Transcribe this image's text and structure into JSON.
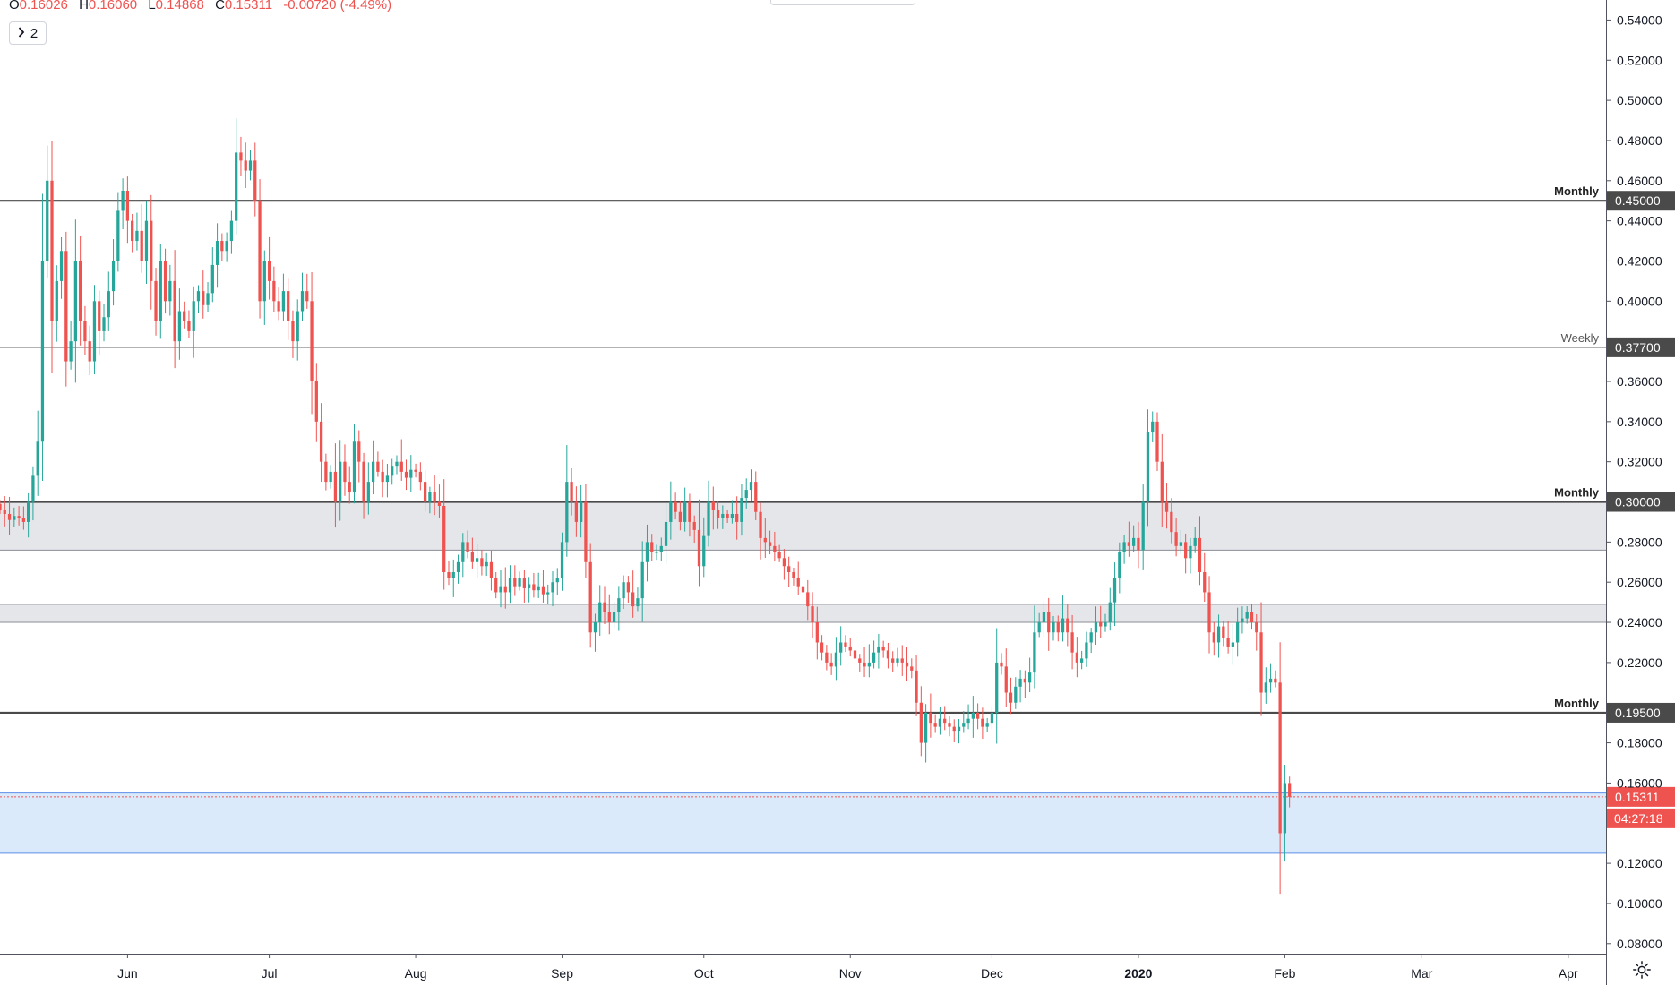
{
  "legend": {
    "open_label": "O",
    "open": "0.16026",
    "high_label": "H",
    "high": "0.16060",
    "low_label": "L",
    "low": "0.14868",
    "close_label": "C",
    "close": "0.15311",
    "change": "-0.00720 (-4.49%)"
  },
  "collapse_button": {
    "label": "2"
  },
  "countdown": "04:27:18",
  "colors": {
    "up": "#26a69a",
    "down": "#ef5350",
    "level_line": "#555555",
    "zone_gray": "#e5e6ea",
    "zone_blue": "#dbeafb",
    "zone_blue_border": "#5b8fe8",
    "axis_text": "#131722"
  },
  "icons": {
    "settings": "gear-icon",
    "chevron": "chevron-right-icon"
  },
  "chart_data": {
    "type": "candlestick",
    "y_range": [
      0.075,
      0.55
    ],
    "x_range": [
      "2019-05-05",
      "2020-04-09"
    ],
    "y_ticks": [
      "0.54000",
      "0.52000",
      "0.50000",
      "0.48000",
      "0.46000",
      "0.44000",
      "0.42000",
      "0.40000",
      "0.36000",
      "0.34000",
      "0.32000",
      "0.28000",
      "0.26000",
      "0.24000",
      "0.22000",
      "0.18000",
      "0.16000",
      "0.12000",
      "0.10000",
      "0.08000"
    ],
    "x_ticks": [
      {
        "label": "Jun",
        "date": "2019-06-01",
        "bold": false
      },
      {
        "label": "Jul",
        "date": "2019-07-01",
        "bold": false
      },
      {
        "label": "Aug",
        "date": "2019-08-01",
        "bold": false
      },
      {
        "label": "Sep",
        "date": "2019-09-01",
        "bold": false
      },
      {
        "label": "Oct",
        "date": "2019-10-01",
        "bold": false
      },
      {
        "label": "Nov",
        "date": "2019-11-01",
        "bold": false
      },
      {
        "label": "Dec",
        "date": "2019-12-01",
        "bold": false
      },
      {
        "label": "2020",
        "date": "2020-01-01",
        "bold": true
      },
      {
        "label": "Feb",
        "date": "2020-02-01",
        "bold": false
      },
      {
        "label": "Mar",
        "date": "2020-03-01",
        "bold": false
      },
      {
        "label": "Apr",
        "date": "2020-04-01",
        "bold": false
      }
    ],
    "levels": [
      {
        "label": "Monthly",
        "price": 0.45,
        "tag": "0.45000",
        "weight": "heavy"
      },
      {
        "label": "Weekly",
        "price": 0.377,
        "tag": "0.37700",
        "weight": "light"
      },
      {
        "label": "Monthly",
        "price": 0.3,
        "tag": "0.30000",
        "weight": "heavy"
      },
      {
        "label": "Monthly",
        "price": 0.195,
        "tag": "0.19500",
        "weight": "heavy"
      }
    ],
    "zones": [
      {
        "from": 0.276,
        "to": 0.3,
        "style": "gray"
      },
      {
        "from": 0.24,
        "to": 0.249,
        "style": "gray"
      },
      {
        "from": 0.125,
        "to": 0.155,
        "style": "blue"
      }
    ],
    "last_price": {
      "price": 0.15311,
      "tag": "0.15311"
    },
    "start_date": "2019-05-05",
    "closes": [
      0.296,
      0.294,
      0.291,
      0.293,
      0.292,
      0.29,
      0.3,
      0.313,
      0.33,
      0.42,
      0.46,
      0.39,
      0.41,
      0.425,
      0.37,
      0.38,
      0.42,
      0.39,
      0.38,
      0.37,
      0.4,
      0.385,
      0.392,
      0.405,
      0.42,
      0.445,
      0.455,
      0.44,
      0.43,
      0.435,
      0.42,
      0.44,
      0.41,
      0.39,
      0.42,
      0.4,
      0.41,
      0.38,
      0.395,
      0.39,
      0.385,
      0.4,
      0.405,
      0.398,
      0.404,
      0.418,
      0.43,
      0.425,
      0.43,
      0.44,
      0.474,
      0.47,
      0.465,
      0.47,
      0.45,
      0.4,
      0.42,
      0.41,
      0.4,
      0.395,
      0.405,
      0.39,
      0.38,
      0.395,
      0.405,
      0.4,
      0.36,
      0.34,
      0.32,
      0.31,
      0.315,
      0.3,
      0.32,
      0.31,
      0.305,
      0.33,
      0.32,
      0.3,
      0.31,
      0.32,
      0.315,
      0.31,
      0.313,
      0.318,
      0.32,
      0.315,
      0.312,
      0.316,
      0.315,
      0.31,
      0.3,
      0.305,
      0.3,
      0.298,
      0.265,
      0.262,
      0.265,
      0.27,
      0.28,
      0.275,
      0.27,
      0.272,
      0.268,
      0.27,
      0.262,
      0.255,
      0.258,
      0.255,
      0.262,
      0.258,
      0.262,
      0.257,
      0.259,
      0.256,
      0.258,
      0.254,
      0.255,
      0.26,
      0.262,
      0.28,
      0.31,
      0.3,
      0.29,
      0.3,
      0.27,
      0.235,
      0.24,
      0.25,
      0.245,
      0.24,
      0.245,
      0.252,
      0.26,
      0.255,
      0.248,
      0.252,
      0.27,
      0.28,
      0.275,
      0.275,
      0.278,
      0.29,
      0.3,
      0.295,
      0.29,
      0.3,
      0.29,
      0.286,
      0.268,
      0.283,
      0.3,
      0.296,
      0.292,
      0.294,
      0.292,
      0.294,
      0.29,
      0.302,
      0.306,
      0.31,
      0.295,
      0.282,
      0.28,
      0.278,
      0.275,
      0.272,
      0.268,
      0.265,
      0.262,
      0.258,
      0.255,
      0.248,
      0.24,
      0.23,
      0.225,
      0.22,
      0.218,
      0.225,
      0.23,
      0.228,
      0.226,
      0.222,
      0.22,
      0.218,
      0.22,
      0.225,
      0.228,
      0.226,
      0.222,
      0.22,
      0.222,
      0.22,
      0.218,
      0.216,
      0.2,
      0.18,
      0.195,
      0.19,
      0.188,
      0.192,
      0.19,
      0.188,
      0.186,
      0.188,
      0.19,
      0.192,
      0.195,
      0.192,
      0.188,
      0.19,
      0.195,
      0.22,
      0.218,
      0.205,
      0.2,
      0.208,
      0.212,
      0.21,
      0.215,
      0.235,
      0.24,
      0.245,
      0.235,
      0.24,
      0.235,
      0.242,
      0.235,
      0.225,
      0.22,
      0.222,
      0.23,
      0.235,
      0.24,
      0.238,
      0.24,
      0.25,
      0.262,
      0.275,
      0.28,
      0.278,
      0.282,
      0.276,
      0.3,
      0.335,
      0.34,
      0.32,
      0.3,
      0.295,
      0.285,
      0.278,
      0.28,
      0.272,
      0.278,
      0.282,
      0.265,
      0.255,
      0.235,
      0.23,
      0.238,
      0.232,
      0.228,
      0.23,
      0.24,
      0.242,
      0.245,
      0.24,
      0.235,
      0.205,
      0.21,
      0.212,
      0.21,
      0.135,
      0.16,
      0.15311
    ]
  }
}
